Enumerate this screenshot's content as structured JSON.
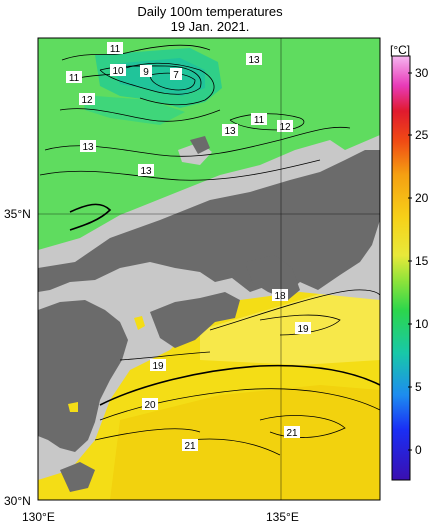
{
  "title": {
    "line1": "Daily 100m temperatures",
    "line2": "19 Jan. 2021."
  },
  "axes": {
    "x_ticks": [
      "130°E",
      "135°E"
    ],
    "y_ticks": [
      "35°N",
      "30°N"
    ]
  },
  "colorbar": {
    "unit": "[°C]",
    "min": -2,
    "max": 32,
    "ticks": [
      30,
      25,
      20,
      15,
      10,
      5,
      0
    ],
    "tick_labels": [
      "30",
      "25",
      "20",
      "15",
      "10",
      "5",
      "0"
    ]
  },
  "contour_labels": [
    "11",
    "10",
    "9",
    "7",
    "13",
    "11",
    "12",
    "13",
    "11",
    "12",
    "13",
    "13",
    "18",
    "19",
    "19",
    "20",
    "21",
    "21"
  ],
  "colors": {
    "land": "#6b6b6b",
    "no_data": "#c8c8c8",
    "north_sea": "#5fdc5f",
    "south_sea": "#f4dd16"
  }
}
